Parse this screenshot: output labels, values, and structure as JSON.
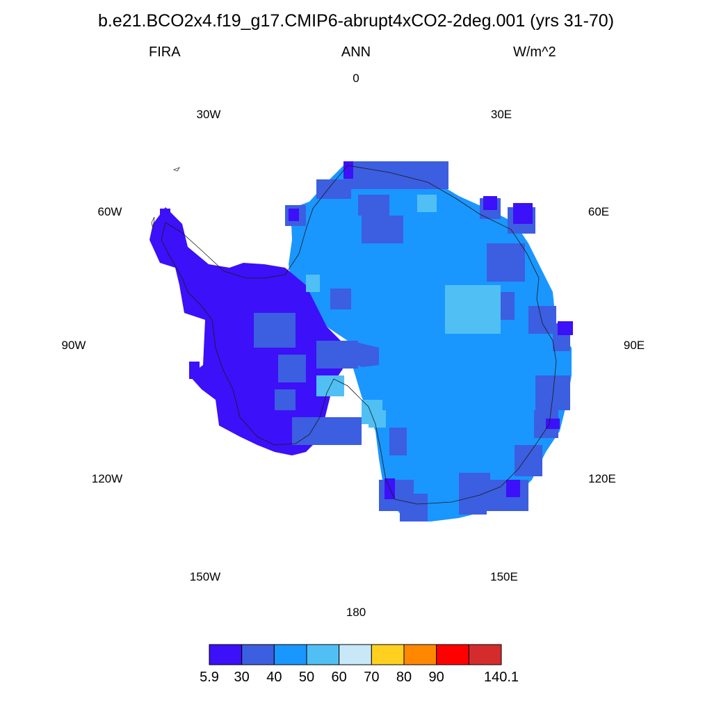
{
  "figure": {
    "title": "b.e21.BCO2x4.f19_g17.CMIP6-abrupt4xCO2-2deg.001 (yrs 31-70)",
    "variable": "FIRA",
    "season": "ANN",
    "units": "W/m^2"
  },
  "longitude_labels": [
    "0",
    "30E",
    "60E",
    "90E",
    "120E",
    "150E",
    "180",
    "150W",
    "120W",
    "90W",
    "60W",
    "30W"
  ],
  "colorbar": {
    "colors": [
      "#3c10f8",
      "#3c5ee0",
      "#1a96ff",
      "#50c0f4",
      "#c8e8f8",
      "#ffd020",
      "#ff8800",
      "#ff0000",
      "#d42c2c"
    ],
    "labels": [
      "5.9",
      "30",
      "40",
      "50",
      "60",
      "70",
      "80",
      "90",
      "140.1"
    ]
  },
  "map": {
    "projection": "south polar stereographic",
    "region": "Antarctica",
    "field_colors": {
      "bin_5_9_30": "#3c10f8",
      "bin_30_40": "#3c5ee0",
      "bin_40_50": "#1a96ff",
      "bin_50_60": "#50c0f4"
    }
  }
}
